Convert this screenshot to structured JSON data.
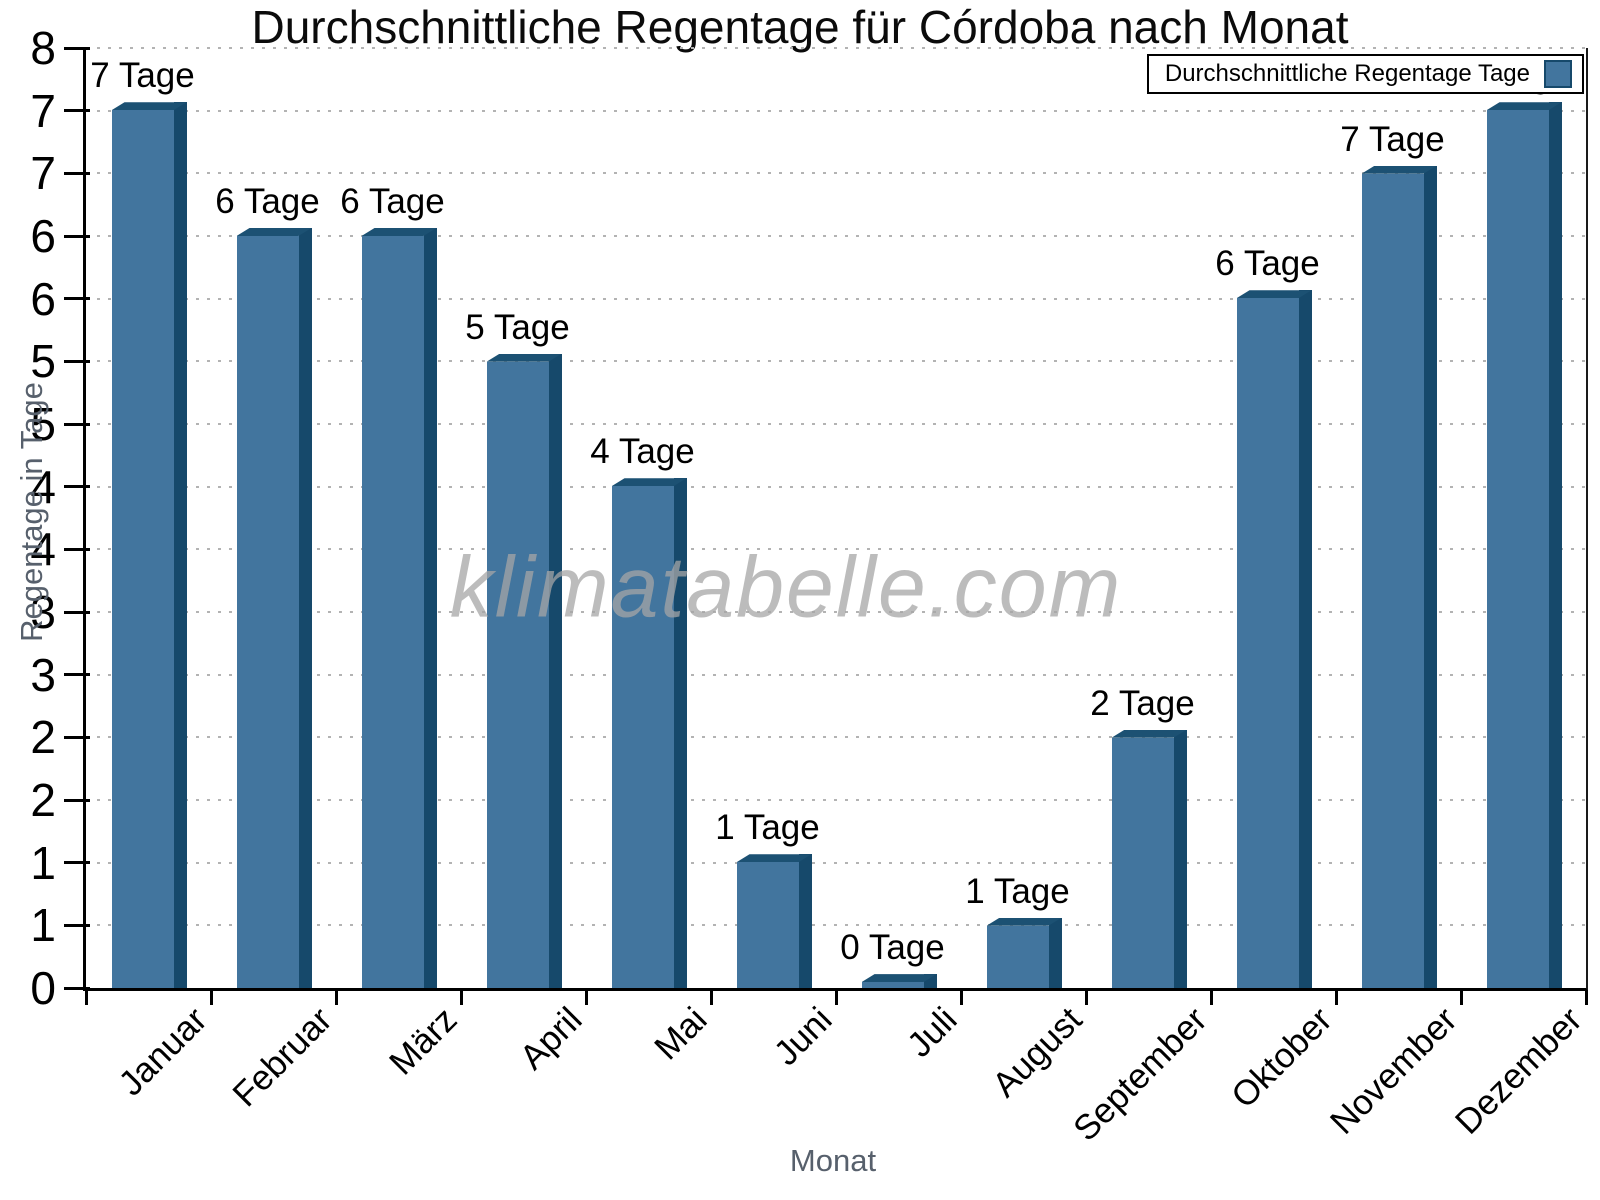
{
  "title": "Durchschnittliche Regentage für Córdoba nach Monat",
  "watermark": "klimatabelle.com",
  "legend": {
    "label": "Durchschnittliche Regentage Tage"
  },
  "axes": {
    "x_title": "Monat",
    "y_title": "Regentage in Tage"
  },
  "colors": {
    "bar_face": "#42759E",
    "bar_side": "#16496B",
    "bar_top": "#1C5173",
    "grid": "#B3B3B3",
    "axis": "#000000",
    "axis_title_text": "#57606C",
    "watermark_text": "#A5A5A5"
  },
  "chart_data": {
    "type": "bar",
    "title": "Durchschnittliche Regentage für Córdoba nach Monat",
    "xlabel": "Monat",
    "ylabel": "Regentage in Tage",
    "categories": [
      "Januar",
      "Februar",
      "März",
      "April",
      "Mai",
      "Juni",
      "Juli",
      "August",
      "September",
      "Oktober",
      "November",
      "Dezember"
    ],
    "series": [
      {
        "name": "Durchschnittliche Regentage Tage",
        "values": [
          7.47,
          6.4,
          6.4,
          5.33,
          4.27,
          1.07,
          0.05,
          0.53,
          2.13,
          5.87,
          6.93,
          7.47
        ]
      }
    ],
    "bar_value_labels": [
      "7 Tage",
      "6 Tage",
      "6 Tage",
      "5 Tage",
      "4 Tage",
      "1 Tage",
      "0 Tage",
      "1 Tage",
      "2 Tage",
      "6 Tage",
      "7 Tage",
      "7 Tage"
    ],
    "unit_suffix": "Tage",
    "ylim": [
      0,
      8
    ],
    "ytick_count": 16,
    "ytick_labels_bottom_to_top": [
      "0",
      "1",
      "1",
      "2",
      "2",
      "3",
      "3",
      "4",
      "4",
      "5",
      "5",
      "6",
      "6",
      "7",
      "7",
      "8"
    ],
    "grid": "horizontal-dotted",
    "legend_position": "top-right",
    "x_label_rotation_deg": -45,
    "x_tick_style": "category-boundaries"
  }
}
